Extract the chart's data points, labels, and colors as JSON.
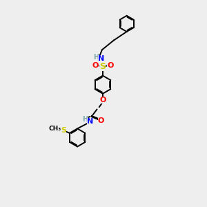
{
  "bg_color": "#eeeeee",
  "bond_color": "#000000",
  "N_color": "#0000ff",
  "O_color": "#ff0000",
  "S_color": "#cccc00",
  "H_color": "#7fa8a8",
  "lw": 1.4,
  "xlim": [
    0,
    10
  ],
  "ylim": [
    0,
    14
  ],
  "figsize": [
    3.0,
    3.0
  ],
  "dpi": 100
}
